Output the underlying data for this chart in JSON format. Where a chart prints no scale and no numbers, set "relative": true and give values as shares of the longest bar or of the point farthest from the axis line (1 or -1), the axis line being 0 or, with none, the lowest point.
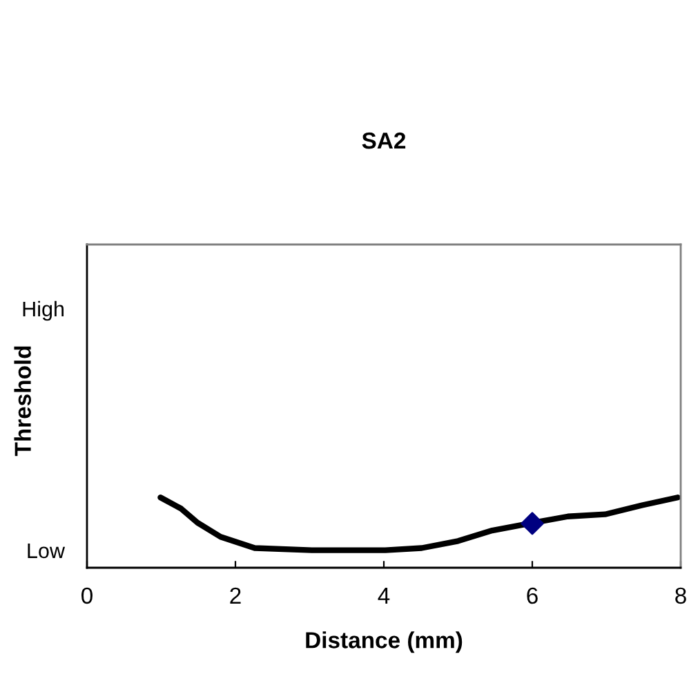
{
  "chart_data": {
    "type": "line",
    "title": "SA2",
    "xlabel": "Distance (mm)",
    "ylabel": "Threshold",
    "relative": true,
    "series": [
      {
        "color": "#000000",
        "x": [
          0.99,
          1.27,
          1.49,
          1.8,
          2.26,
          3.03,
          4.02,
          4.51,
          5.0,
          5.46,
          5.96,
          6.48,
          6.98,
          7.48,
          7.96
        ],
        "values": [
          1,
          0.84,
          0.64,
          0.44,
          0.28,
          0.25,
          0.25,
          0.28,
          0.38,
          0.53,
          0.63,
          0.73,
          0.76,
          0.89,
          1
        ]
      },
      {
        "type": "scatter",
        "color": "#000080",
        "marker": "diamond",
        "x": [
          6
        ],
        "values": [
          0.63
        ]
      }
    ],
    "xlim": [
      0,
      8
    ],
    "xticks": [
      0,
      2,
      4,
      6,
      8
    ],
    "annotations": [
      "High",
      "Low"
    ],
    "grid": false,
    "legend": false
  }
}
